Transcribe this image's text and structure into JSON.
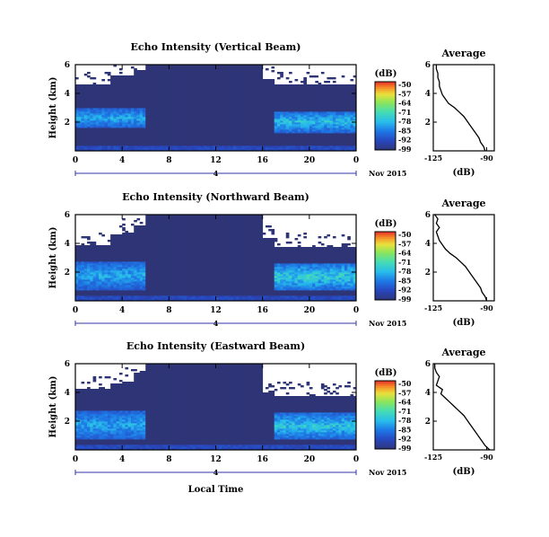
{
  "figure": {
    "date_label": "Nov 2015",
    "time_axis_label": "Local Time",
    "height_axis_label": "Height (km)",
    "colorbar_unit": "(dB)",
    "average_xlabel": "(dB)"
  },
  "chart_data": [
    {
      "type": "heatmap",
      "title": "Echo Intensity (Vertical Beam)",
      "ylabel": "Height (km)",
      "x_ticks": [
        "0",
        "4",
        "8",
        "12",
        "16",
        "20",
        "0"
      ],
      "y_ticks": [
        "2",
        "4",
        "6"
      ],
      "xlim": [
        0,
        24
      ],
      "ylim": [
        0,
        6
      ],
      "date_marker": "4",
      "colorbar": {
        "label": "(dB)",
        "ticks": [
          "-50",
          "-57",
          "-64",
          "-71",
          "-78",
          "-85",
          "-92",
          "-99"
        ],
        "range": [
          -99,
          -50
        ]
      },
      "no_data_color": "#ffffff",
      "data_top_km": [
        4.6,
        4.6,
        4.6,
        5.2,
        5.2,
        5.6,
        6.0,
        6.0,
        6.0,
        6.0,
        6.0,
        6.0,
        6.0,
        6.0,
        6.0,
        6.0,
        5.0,
        4.6,
        4.6,
        4.6,
        4.6,
        4.6,
        4.6,
        4.6
      ],
      "cloud_layer": [
        {
          "x": [
            0,
            6
          ],
          "y": [
            1.6,
            3.0
          ],
          "peak_db": -78
        },
        {
          "x": [
            17,
            24
          ],
          "y": [
            1.3,
            2.8
          ],
          "peak_db": -75
        }
      ]
    },
    {
      "type": "heatmap",
      "title": "Echo Intensity (Northward Beam)",
      "ylabel": "Height (km)",
      "x_ticks": [
        "0",
        "4",
        "8",
        "12",
        "16",
        "20",
        "0"
      ],
      "y_ticks": [
        "2",
        "4",
        "6"
      ],
      "xlim": [
        0,
        24
      ],
      "ylim": [
        0,
        6
      ],
      "date_marker": "4",
      "colorbar": {
        "label": "(dB)",
        "ticks": [
          "-50",
          "-57",
          "-64",
          "-71",
          "-78",
          "-85",
          "-92",
          "-99"
        ],
        "range": [
          -99,
          -50
        ]
      },
      "no_data_color": "#ffffff",
      "data_top_km": [
        3.9,
        3.9,
        3.9,
        4.6,
        4.8,
        5.2,
        6.0,
        6.0,
        6.0,
        6.0,
        6.0,
        6.0,
        6.0,
        6.0,
        6.0,
        6.0,
        4.4,
        3.8,
        3.8,
        3.8,
        3.8,
        3.8,
        3.8,
        3.8
      ],
      "cloud_layer": [
        {
          "x": [
            0,
            6
          ],
          "y": [
            0.8,
            2.8
          ],
          "peak_db": -78
        },
        {
          "x": [
            17,
            24
          ],
          "y": [
            0.8,
            2.6
          ],
          "peak_db": -72
        }
      ]
    },
    {
      "type": "heatmap",
      "title": "Echo Intensity (Eastward Beam)",
      "ylabel": "Height (km)",
      "x_ticks": [
        "0",
        "4",
        "8",
        "12",
        "16",
        "20",
        "0"
      ],
      "y_ticks": [
        "2",
        "4",
        "6"
      ],
      "xlim": [
        0,
        24
      ],
      "ylim": [
        0,
        6
      ],
      "date_marker": "4",
      "colorbar": {
        "label": "(dB)",
        "ticks": [
          "-50",
          "-57",
          "-64",
          "-71",
          "-78",
          "-85",
          "-92",
          "-99"
        ],
        "range": [
          -99,
          -50
        ]
      },
      "no_data_color": "#ffffff",
      "data_top_km": [
        4.2,
        4.2,
        4.2,
        4.6,
        4.8,
        5.4,
        6.0,
        6.0,
        6.0,
        6.0,
        6.0,
        6.0,
        6.0,
        6.0,
        6.0,
        6.0,
        4.0,
        3.8,
        3.8,
        3.8,
        3.8,
        3.8,
        3.8,
        3.8
      ],
      "cloud_layer": [
        {
          "x": [
            0,
            6
          ],
          "y": [
            0.7,
            2.8
          ],
          "peak_db": -78
        },
        {
          "x": [
            17,
            24
          ],
          "y": [
            0.8,
            2.6
          ],
          "peak_db": -74
        }
      ]
    },
    {
      "type": "line",
      "title": "Average",
      "xlabel": "(dB)",
      "x_ticks": [
        "-125",
        "-90"
      ],
      "y_ticks": [
        "2",
        "4",
        "6"
      ],
      "xlim": [
        -125,
        -85
      ],
      "ylim": [
        0,
        6
      ],
      "y": [
        0.0,
        0.3,
        0.6,
        0.9,
        1.2,
        1.5,
        1.8,
        2.1,
        2.4,
        2.7,
        3.0,
        3.3,
        3.6,
        3.9,
        4.2,
        4.5,
        4.8,
        5.1,
        5.4,
        5.7,
        6.0
      ],
      "x": [
        -91,
        -92,
        -94,
        -95,
        -97,
        -99,
        -101,
        -103,
        -105,
        -108,
        -111,
        -115,
        -117,
        -119,
        -120,
        -121,
        -121,
        -122,
        -122,
        -123,
        -123
      ]
    },
    {
      "type": "line",
      "title": "Average",
      "xlabel": "(dB)",
      "x_ticks": [
        "-125",
        "-90"
      ],
      "y_ticks": [
        "2",
        "4",
        "6"
      ],
      "xlim": [
        -125,
        -85
      ],
      "ylim": [
        0,
        6
      ],
      "y": [
        0.0,
        0.3,
        0.6,
        0.9,
        1.2,
        1.5,
        1.8,
        2.1,
        2.4,
        2.7,
        3.0,
        3.3,
        3.6,
        3.9,
        4.2,
        4.5,
        4.8,
        5.1,
        5.4,
        5.7,
        6.0
      ],
      "x": [
        -90,
        -91,
        -93,
        -94,
        -96,
        -98,
        -100,
        -102,
        -104,
        -107,
        -110,
        -114,
        -117,
        -119,
        -121,
        -122,
        -123,
        -121,
        -123,
        -122,
        -124
      ]
    },
    {
      "type": "line",
      "title": "Average",
      "xlabel": "(dB)",
      "x_ticks": [
        "-125",
        "-90"
      ],
      "y_ticks": [
        "2",
        "4",
        "6"
      ],
      "xlim": [
        -125,
        -85
      ],
      "ylim": [
        0,
        6
      ],
      "y": [
        0.0,
        0.3,
        0.6,
        0.9,
        1.2,
        1.5,
        1.8,
        2.1,
        2.4,
        2.7,
        3.0,
        3.3,
        3.6,
        3.9,
        4.2,
        4.5,
        4.8,
        5.1,
        5.4,
        5.7,
        6.0
      ],
      "x": [
        -88,
        -91,
        -93,
        -95,
        -97,
        -99,
        -101,
        -103,
        -105,
        -108,
        -111,
        -114,
        -117,
        -120,
        -119,
        -123,
        -122,
        -121,
        -123,
        -124,
        -124
      ]
    }
  ],
  "colors": {
    "no_data": "#ffffff",
    "low_echo": "#2e3577",
    "axis": "#000000",
    "date_line": "#3333aa"
  }
}
